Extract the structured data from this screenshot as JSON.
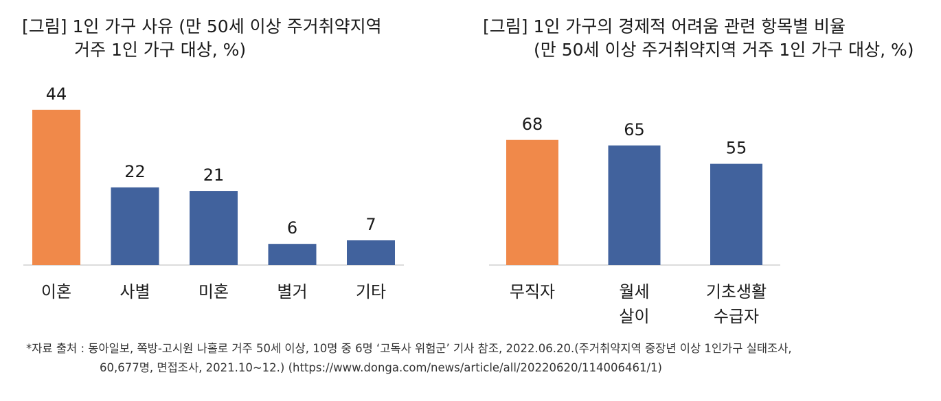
{
  "colors": {
    "highlight": "#F0894A",
    "default": "#41629D",
    "axis": "#d0d0d0"
  },
  "chart_data": [
    {
      "type": "bar",
      "title": [
        "[그림] 1인 가구 사유 (만 50세 이상 주거취약지역",
        "거주 1인 가구 대상, %)"
      ],
      "categories": [
        [
          "이혼"
        ],
        [
          "사별"
        ],
        [
          "미혼"
        ],
        [
          "별거"
        ],
        [
          "기타"
        ]
      ],
      "values": [
        44,
        22,
        21,
        6,
        7
      ],
      "highlight_index": 0,
      "ylim": [
        0,
        50
      ],
      "grid": false,
      "legend": "none"
    },
    {
      "type": "bar",
      "title": [
        "[그림] 1인 가구의 경제적 어려움 관련 항목별 비율",
        "(만 50세 이상 주거취약지역 거주 1인 가구 대상, %)"
      ],
      "categories": [
        [
          "무직자"
        ],
        [
          "월세",
          "살이"
        ],
        [
          "기초생활",
          "수급자"
        ]
      ],
      "values": [
        68,
        65,
        55
      ],
      "highlight_index": 0,
      "ylim": [
        0,
        100
      ],
      "grid": false,
      "legend": "none"
    }
  ],
  "footnote": [
    "*자료 출처 : 동아일보, 쪽방-고시원 나홀로 거주 50세 이상, 10명 중 6명 ‘고독사 위험군’ 기사 참조, 2022.06.20.(주거취약지역 중장년 이상 1인가구 실태조사,",
    "60,677명, 면접조사, 2021.10~12.) (https://www.donga.com/news/article/all/20220620/114006461/1)"
  ]
}
